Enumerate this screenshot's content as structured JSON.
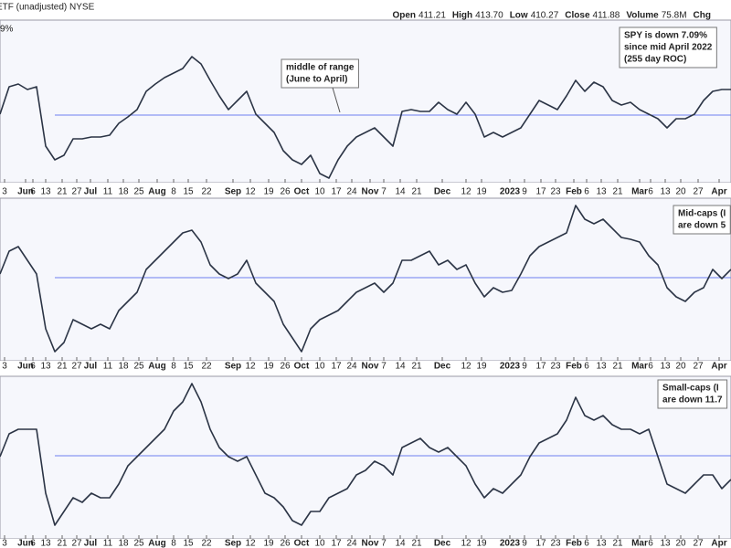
{
  "header": {
    "symbol": "ETF (unadjusted) NYSE",
    "quote": [
      {
        "label": "Open",
        "value": "411.21"
      },
      {
        "label": "High",
        "value": "413.70"
      },
      {
        "label": "Low",
        "value": "410.27"
      },
      {
        "label": "Close",
        "value": "411.88"
      },
      {
        "label": "Volume",
        "value": "75.8M"
      },
      {
        "label": "Chg",
        "value": ""
      }
    ]
  },
  "chart_data": [
    {
      "type": "line",
      "corner_label": "9%",
      "series": [
        {
          "color": "#2b3445",
          "values": [
            75,
            105,
            108,
            102,
            105,
            40,
            25,
            30,
            48,
            48,
            50,
            50,
            52,
            65,
            72,
            80,
            100,
            108,
            115,
            120,
            125,
            138,
            130,
            112,
            95,
            80,
            90,
            100,
            75,
            65,
            55,
            35,
            25,
            20,
            30,
            10,
            5,
            25,
            40,
            50,
            55,
            60,
            50,
            40,
            78,
            80,
            78,
            78,
            88,
            80,
            75,
            88,
            75,
            50,
            55,
            50,
            55,
            60,
            75,
            90,
            85,
            80,
            95,
            112,
            100,
            110,
            105,
            90,
            85,
            88,
            80,
            75,
            70,
            60,
            70,
            70,
            75,
            90,
            100,
            102,
            102
          ]
        }
      ],
      "reference_line": {
        "value": 74,
        "color": "#6f7ff0"
      },
      "ylim": [
        0,
        178
      ],
      "annotation": {
        "lines": [
          "middle of range",
          "(June to April)"
        ],
        "color": "#2433c9",
        "arrow": true
      },
      "annotation2": {
        "lines": [
          "SPY is down 7.09%",
          "since mid April 2022",
          "(255 day ROC)"
        ],
        "color": "#111111"
      },
      "xticks": [
        {
          "value": 0.5,
          "label": "3"
        },
        {
          "value": 2.8,
          "label": "Jun"
        },
        {
          "value": 3.6,
          "label": "6"
        },
        {
          "value": 5,
          "label": "13"
        },
        {
          "value": 6.8,
          "label": "21"
        },
        {
          "value": 8.4,
          "label": "27"
        },
        {
          "value": 9.9,
          "label": "Jul"
        },
        {
          "value": 11.8,
          "label": "11"
        },
        {
          "value": 13.5,
          "label": "18"
        },
        {
          "value": 15.2,
          "label": "25"
        },
        {
          "value": 17.2,
          "label": "Aug"
        },
        {
          "value": 19,
          "label": "8"
        },
        {
          "value": 20.6,
          "label": "15"
        },
        {
          "value": 22.6,
          "label": "22"
        },
        {
          "value": 25.5,
          "label": "Sep"
        },
        {
          "value": 27.4,
          "label": "12"
        },
        {
          "value": 29.4,
          "label": "19"
        },
        {
          "value": 31.2,
          "label": "26"
        },
        {
          "value": 33,
          "label": "Oct"
        },
        {
          "value": 35,
          "label": "10"
        },
        {
          "value": 36.8,
          "label": "17"
        },
        {
          "value": 38.5,
          "label": "24"
        },
        {
          "value": 40.5,
          "label": "Nov"
        },
        {
          "value": 42,
          "label": "7"
        },
        {
          "value": 43.8,
          "label": "14"
        },
        {
          "value": 45.6,
          "label": "21"
        },
        {
          "value": 48.4,
          "label": "Dec"
        },
        {
          "value": 51,
          "label": "12"
        },
        {
          "value": 52.7,
          "label": "19"
        },
        {
          "value": 55.8,
          "label": "2023"
        },
        {
          "value": 57.4,
          "label": "9"
        },
        {
          "value": 59.2,
          "label": "17"
        },
        {
          "value": 60.8,
          "label": "23"
        },
        {
          "value": 62.8,
          "label": "Feb"
        },
        {
          "value": 64.2,
          "label": "6"
        },
        {
          "value": 65.8,
          "label": "13"
        },
        {
          "value": 67.6,
          "label": "21"
        },
        {
          "value": 70,
          "label": "Mar"
        },
        {
          "value": 71.2,
          "label": "6"
        },
        {
          "value": 72.8,
          "label": "13"
        },
        {
          "value": 74.5,
          "label": "20"
        },
        {
          "value": 76.4,
          "label": "27"
        },
        {
          "value": 78.7,
          "label": "Apr"
        }
      ]
    },
    {
      "type": "line",
      "series": [
        {
          "color": "#2b3445",
          "values": [
            95,
            120,
            125,
            110,
            95,
            35,
            10,
            20,
            45,
            40,
            35,
            40,
            35,
            55,
            65,
            75,
            100,
            110,
            120,
            130,
            140,
            143,
            130,
            105,
            95,
            90,
            95,
            110,
            85,
            75,
            65,
            40,
            25,
            10,
            35,
            45,
            50,
            55,
            65,
            75,
            80,
            85,
            75,
            85,
            110,
            110,
            115,
            120,
            105,
            110,
            100,
            105,
            85,
            70,
            80,
            75,
            77,
            95,
            115,
            125,
            130,
            135,
            140,
            170,
            155,
            150,
            155,
            145,
            135,
            133,
            130,
            115,
            105,
            80,
            70,
            65,
            75,
            80,
            100,
            90,
            100
          ]
        }
      ],
      "reference_line": {
        "value": 91,
        "color": "#6f7ff0"
      },
      "ylim": [
        0,
        178
      ],
      "annotation2": {
        "lines": [
          "Mid-caps (I",
          "are down 5"
        ],
        "color": "#555555"
      },
      "xticks": [
        {
          "value": 0.5,
          "label": "3"
        },
        {
          "value": 2.8,
          "label": "Jun"
        },
        {
          "value": 3.6,
          "label": "6"
        },
        {
          "value": 5,
          "label": "13"
        },
        {
          "value": 6.8,
          "label": "21"
        },
        {
          "value": 8.4,
          "label": "27"
        },
        {
          "value": 9.9,
          "label": "Jul"
        },
        {
          "value": 11.8,
          "label": "11"
        },
        {
          "value": 13.5,
          "label": "18"
        },
        {
          "value": 15.2,
          "label": "25"
        },
        {
          "value": 17.2,
          "label": "Aug"
        },
        {
          "value": 19,
          "label": "8"
        },
        {
          "value": 20.6,
          "label": "15"
        },
        {
          "value": 22.6,
          "label": "22"
        },
        {
          "value": 25.5,
          "label": "Sep"
        },
        {
          "value": 27.4,
          "label": "12"
        },
        {
          "value": 29.4,
          "label": "19"
        },
        {
          "value": 31.2,
          "label": "26"
        },
        {
          "value": 33,
          "label": "Oct"
        },
        {
          "value": 35,
          "label": "10"
        },
        {
          "value": 36.8,
          "label": "17"
        },
        {
          "value": 38.5,
          "label": "24"
        },
        {
          "value": 40.5,
          "label": "Nov"
        },
        {
          "value": 42,
          "label": "7"
        },
        {
          "value": 43.8,
          "label": "14"
        },
        {
          "value": 45.6,
          "label": "21"
        },
        {
          "value": 48.4,
          "label": "Dec"
        },
        {
          "value": 51,
          "label": "12"
        },
        {
          "value": 52.7,
          "label": "19"
        },
        {
          "value": 55.8,
          "label": "2023"
        },
        {
          "value": 57.4,
          "label": "9"
        },
        {
          "value": 59.2,
          "label": "17"
        },
        {
          "value": 60.8,
          "label": "23"
        },
        {
          "value": 62.8,
          "label": "Feb"
        },
        {
          "value": 64.2,
          "label": "6"
        },
        {
          "value": 65.8,
          "label": "13"
        },
        {
          "value": 67.6,
          "label": "21"
        },
        {
          "value": 70,
          "label": "Mar"
        },
        {
          "value": 71.2,
          "label": "6"
        },
        {
          "value": 72.8,
          "label": "13"
        },
        {
          "value": 74.5,
          "label": "20"
        },
        {
          "value": 76.4,
          "label": "27"
        },
        {
          "value": 78.7,
          "label": "Apr"
        }
      ]
    },
    {
      "type": "line",
      "series": [
        {
          "color": "#2b3445",
          "values": [
            90,
            115,
            120,
            120,
            120,
            50,
            15,
            30,
            45,
            40,
            50,
            45,
            45,
            60,
            80,
            90,
            100,
            110,
            120,
            140,
            150,
            170,
            150,
            120,
            100,
            90,
            85,
            90,
            70,
            50,
            45,
            35,
            20,
            15,
            30,
            30,
            45,
            50,
            55,
            70,
            75,
            85,
            80,
            70,
            100,
            105,
            110,
            100,
            95,
            100,
            90,
            80,
            60,
            45,
            55,
            50,
            60,
            70,
            90,
            105,
            110,
            115,
            130,
            155,
            135,
            130,
            135,
            125,
            120,
            120,
            115,
            120,
            90,
            60,
            55,
            50,
            60,
            70,
            70,
            55,
            65
          ]
        }
      ],
      "reference_line": {
        "value": 91,
        "color": "#6f7ff0"
      },
      "ylim": [
        0,
        178
      ],
      "annotation2": {
        "lines": [
          "Small-caps (I",
          "are down 11.7"
        ],
        "color": "#e0191b"
      },
      "xticks": [
        {
          "value": 0.5,
          "label": "3"
        },
        {
          "value": 2.8,
          "label": "Jun"
        },
        {
          "value": 3.6,
          "label": "6"
        },
        {
          "value": 5,
          "label": "13"
        },
        {
          "value": 6.8,
          "label": "21"
        },
        {
          "value": 8.4,
          "label": "27"
        },
        {
          "value": 9.9,
          "label": "Jul"
        },
        {
          "value": 11.8,
          "label": "11"
        },
        {
          "value": 13.5,
          "label": "18"
        },
        {
          "value": 15.2,
          "label": "25"
        },
        {
          "value": 17.2,
          "label": "Aug"
        },
        {
          "value": 19,
          "label": "8"
        },
        {
          "value": 20.6,
          "label": "15"
        },
        {
          "value": 22.6,
          "label": "22"
        },
        {
          "value": 25.5,
          "label": "Sep"
        },
        {
          "value": 27.4,
          "label": "12"
        },
        {
          "value": 29.4,
          "label": "19"
        },
        {
          "value": 31.2,
          "label": "26"
        },
        {
          "value": 33,
          "label": "Oct"
        },
        {
          "value": 35,
          "label": "10"
        },
        {
          "value": 36.8,
          "label": "17"
        },
        {
          "value": 38.5,
          "label": "24"
        },
        {
          "value": 40.5,
          "label": "Nov"
        },
        {
          "value": 42,
          "label": "7"
        },
        {
          "value": 43.8,
          "label": "14"
        },
        {
          "value": 45.6,
          "label": "21"
        },
        {
          "value": 48.4,
          "label": "Dec"
        },
        {
          "value": 51,
          "label": "12"
        },
        {
          "value": 52.7,
          "label": "19"
        },
        {
          "value": 55.8,
          "label": "2023"
        },
        {
          "value": 57.4,
          "label": "9"
        },
        {
          "value": 59.2,
          "label": "17"
        },
        {
          "value": 60.8,
          "label": "23"
        },
        {
          "value": 62.8,
          "label": "Feb"
        },
        {
          "value": 64.2,
          "label": "6"
        },
        {
          "value": 65.8,
          "label": "13"
        },
        {
          "value": 67.6,
          "label": "21"
        },
        {
          "value": 70,
          "label": "Mar"
        },
        {
          "value": 71.2,
          "label": "6"
        },
        {
          "value": 72.8,
          "label": "13"
        },
        {
          "value": 74.5,
          "label": "20"
        },
        {
          "value": 76.4,
          "label": "27"
        },
        {
          "value": 78.7,
          "label": "Apr"
        }
      ]
    }
  ]
}
